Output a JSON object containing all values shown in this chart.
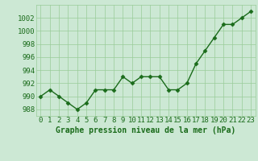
{
  "x": [
    0,
    1,
    2,
    3,
    4,
    5,
    6,
    7,
    8,
    9,
    10,
    11,
    12,
    13,
    14,
    15,
    16,
    17,
    18,
    19,
    20,
    21,
    22,
    23
  ],
  "y": [
    990,
    991,
    990,
    989,
    988,
    989,
    991,
    991,
    991,
    993,
    992,
    993,
    993,
    993,
    991,
    991,
    992,
    995,
    997,
    999,
    1001,
    1001,
    1002,
    1003
  ],
  "line_color": "#1a6b1a",
  "marker": "D",
  "marker_color": "#1a6b1a",
  "marker_size": 2.5,
  "line_width": 1.0,
  "bg_color": "#cce8d4",
  "grid_color": "#99cc99",
  "xlabel": "Graphe pression niveau de la mer (hPa)",
  "xlabel_fontsize": 7,
  "ylabel_ticks": [
    988,
    990,
    992,
    994,
    996,
    998,
    1000,
    1002
  ],
  "ylim": [
    987.0,
    1004.0
  ],
  "xlim": [
    -0.5,
    23.5
  ],
  "tick_fontsize": 6.5,
  "tick_color": "#1a6b1a"
}
